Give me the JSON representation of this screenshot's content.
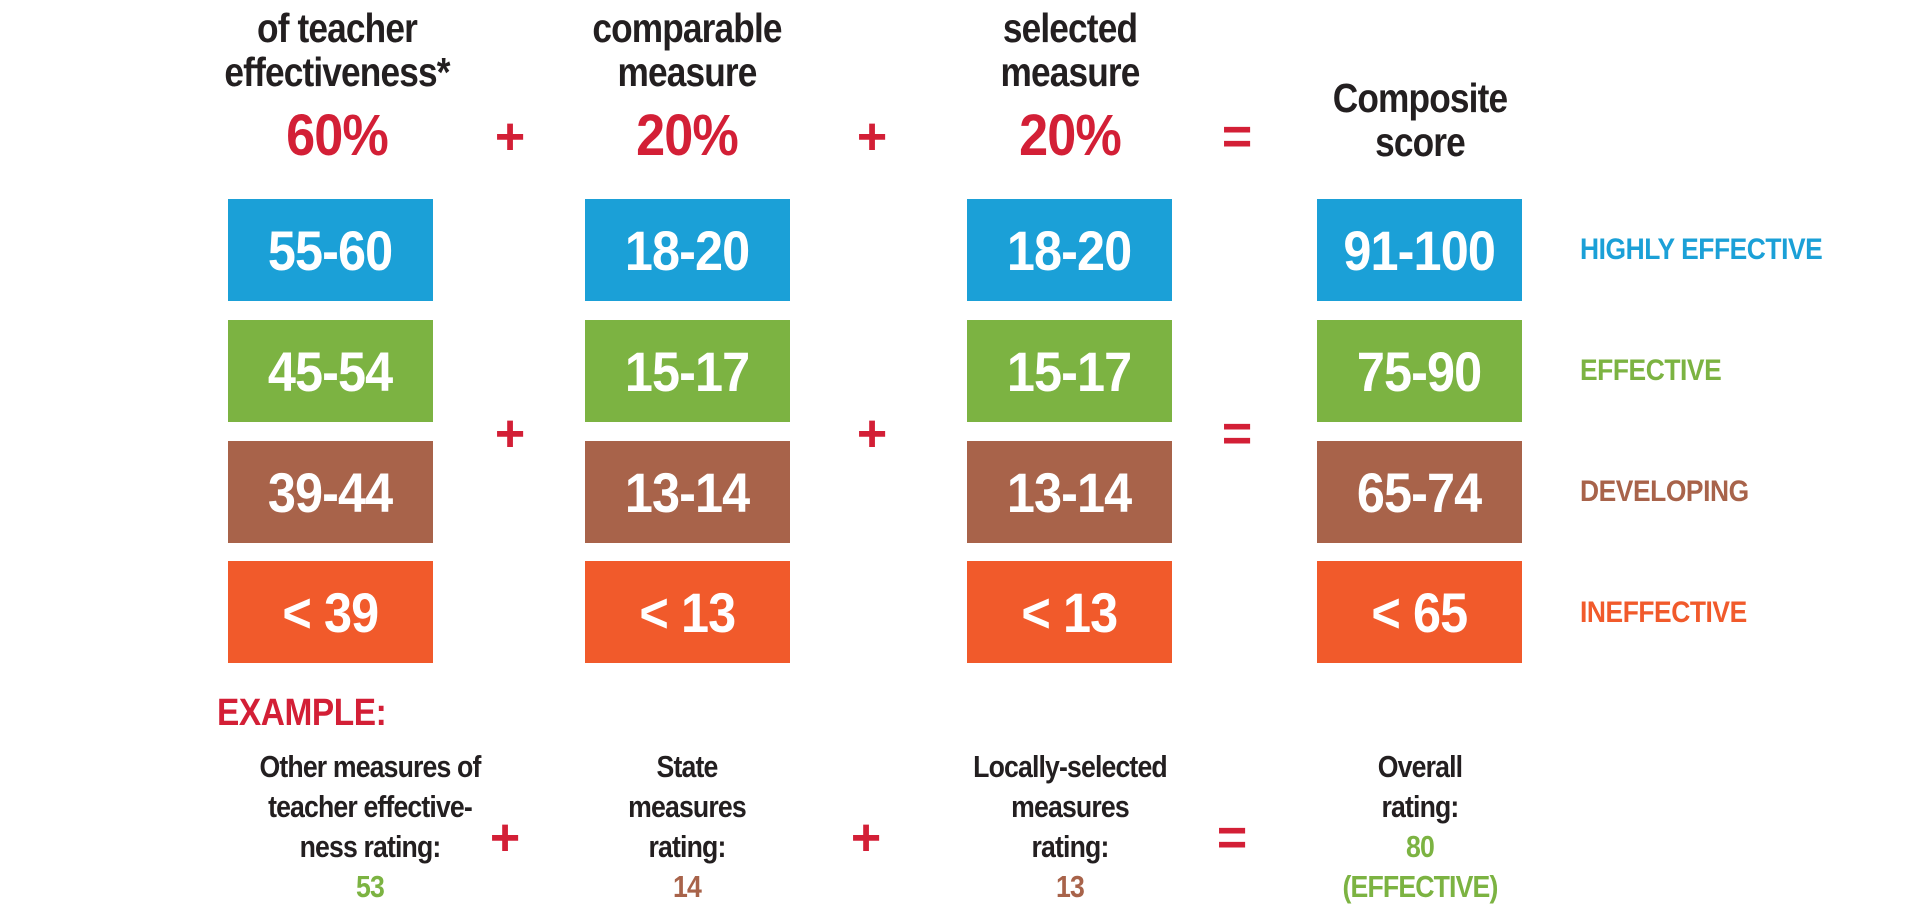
{
  "headers": [
    {
      "lines": [
        "of teacher",
        "effectiveness*"
      ],
      "percent": "60%"
    },
    {
      "lines": [
        "comparable",
        "measure"
      ],
      "percent": "20%"
    },
    {
      "lines": [
        "selected",
        "measure"
      ],
      "percent": "20%"
    },
    {
      "lines": [
        "Composite",
        "score"
      ],
      "percent": ""
    }
  ],
  "operators": {
    "plus": "+",
    "equals": "="
  },
  "rows": [
    {
      "level": "HIGHLY EFFECTIVE",
      "color": "#1ba0d7",
      "values": [
        "55-60",
        "18-20",
        "18-20",
        "91-100"
      ]
    },
    {
      "level": "EFFECTIVE",
      "color": "#7cb342",
      "values": [
        "45-54",
        "15-17",
        "15-17",
        "75-90"
      ]
    },
    {
      "level": "DEVELOPING",
      "color": "#a8634a",
      "values": [
        "39-44",
        "13-14",
        "13-14",
        "65-74"
      ]
    },
    {
      "level": "INEFFECTIVE",
      "color": "#f15a2b",
      "values": [
        "< 39",
        "< 13",
        "< 13",
        "< 65"
      ]
    }
  ],
  "example": {
    "title": "EXAMPLE:",
    "items": [
      {
        "lines": [
          "Other measures of",
          "teacher effective-",
          "ness rating:"
        ],
        "value": "53",
        "value_color": "#7cb342"
      },
      {
        "lines": [
          "State",
          "measures",
          "rating:"
        ],
        "value": "14",
        "value_color": "#a8634a"
      },
      {
        "lines": [
          "Locally-selected",
          "measures",
          "rating:"
        ],
        "value": "13",
        "value_color": "#a8634a"
      },
      {
        "lines": [
          "Overall",
          "rating:"
        ],
        "value": "80",
        "value2": "(EFFECTIVE)",
        "value_color": "#7cb342"
      }
    ]
  }
}
